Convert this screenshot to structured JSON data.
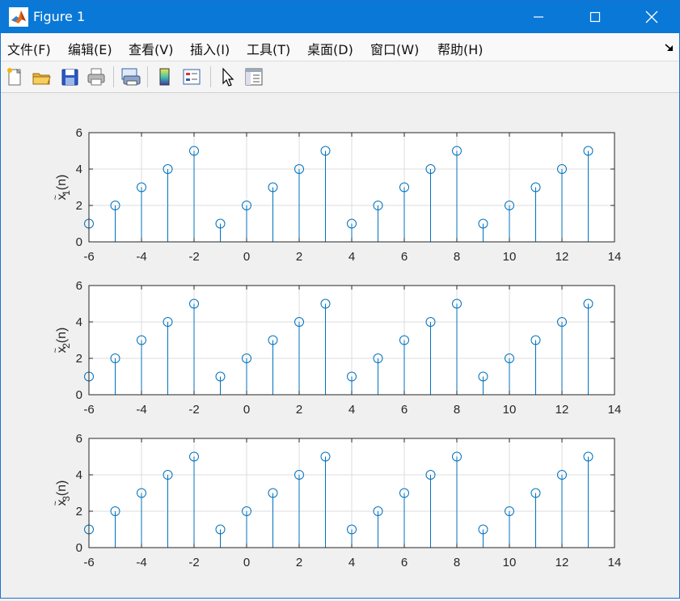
{
  "window": {
    "title": "Figure 1",
    "accent_color": "#0a78d7",
    "controls": [
      "minimize-icon",
      "maximize-icon",
      "close-icon"
    ]
  },
  "menu": {
    "items": [
      "文件(F)",
      "编辑(E)",
      "查看(V)",
      "插入(I)",
      "工具(T)",
      "桌面(D)",
      "窗口(W)",
      "帮助(H)"
    ],
    "dock_icon": "dock-arrow-icon"
  },
  "toolbar": {
    "buttons": [
      "new-figure-icon",
      "open-file-icon",
      "save-icon",
      "print-icon",
      "print-preview-icon",
      "colorbar-icon",
      "legend-icon",
      "pointer-icon",
      "property-inspector-icon"
    ]
  },
  "chart_data": [
    {
      "type": "stem",
      "ylabel": "x~_1(n)",
      "x": [
        -6,
        -5,
        -4,
        -3,
        -2,
        -1,
        0,
        1,
        2,
        3,
        4,
        5,
        6,
        7,
        8,
        9,
        10,
        11,
        12,
        13
      ],
      "values": [
        1,
        2,
        3,
        4,
        5,
        1,
        2,
        3,
        4,
        5,
        1,
        2,
        3,
        4,
        5,
        1,
        2,
        3,
        4,
        5
      ],
      "xlim": [
        -6,
        14
      ],
      "ylim": [
        0,
        6
      ],
      "xticks": [
        "-6",
        "-4",
        "-2",
        "0",
        "2",
        "4",
        "6",
        "8",
        "10",
        "12",
        "14"
      ],
      "yticks": [
        "0",
        "2",
        "4",
        "6"
      ],
      "grid": true,
      "color": "#0072bd"
    },
    {
      "type": "stem",
      "ylabel": "x~_2(n)",
      "x": [
        -6,
        -5,
        -4,
        -3,
        -2,
        -1,
        0,
        1,
        2,
        3,
        4,
        5,
        6,
        7,
        8,
        9,
        10,
        11,
        12,
        13
      ],
      "values": [
        1,
        2,
        3,
        4,
        5,
        1,
        2,
        3,
        4,
        5,
        1,
        2,
        3,
        4,
        5,
        1,
        2,
        3,
        4,
        5
      ],
      "xlim": [
        -6,
        14
      ],
      "ylim": [
        0,
        6
      ],
      "xticks": [
        "-6",
        "-4",
        "-2",
        "0",
        "2",
        "4",
        "6",
        "8",
        "10",
        "12",
        "14"
      ],
      "yticks": [
        "0",
        "2",
        "4",
        "6"
      ],
      "grid": true,
      "color": "#0072bd"
    },
    {
      "type": "stem",
      "ylabel": "x~_3(n)",
      "x": [
        -6,
        -5,
        -4,
        -3,
        -2,
        -1,
        0,
        1,
        2,
        3,
        4,
        5,
        6,
        7,
        8,
        9,
        10,
        11,
        12,
        13
      ],
      "values": [
        1,
        2,
        3,
        4,
        5,
        1,
        2,
        3,
        4,
        5,
        1,
        2,
        3,
        4,
        5,
        1,
        2,
        3,
        4,
        5
      ],
      "xlim": [
        -6,
        14
      ],
      "ylim": [
        0,
        6
      ],
      "xticks": [
        "-6",
        "-4",
        "-2",
        "0",
        "2",
        "4",
        "6",
        "8",
        "10",
        "12",
        "14"
      ],
      "yticks": [
        "0",
        "2",
        "4",
        "6"
      ],
      "grid": true,
      "color": "#0072bd"
    }
  ]
}
